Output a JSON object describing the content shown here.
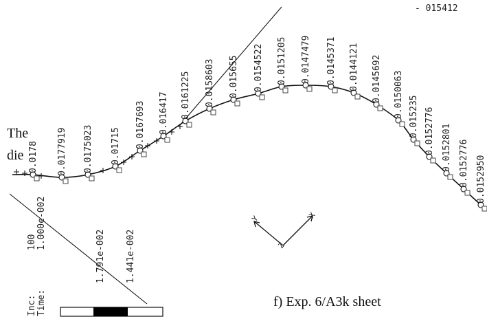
{
  "side_text": [
    "The",
    "die"
  ],
  "caption": "f) Exp. 6/A3k sheet",
  "corner_label": "- 015412",
  "inc_label": "Inc:",
  "time_label": "Time:",
  "inc_value": "100",
  "time_value": "1.000e-002",
  "scale_max": "1.791e-002",
  "scale_min": "1.441e-002",
  "axes": {
    "x": "X",
    "y": "Y",
    "z": "Z"
  },
  "node_values": [
    "0.0178",
    "0.0177919",
    "0.0175023",
    "0.01715",
    "0.0167693",
    "0.016417",
    "0.0161225",
    "0.0158603",
    "0.015655",
    "0.0154522",
    "0.0151205",
    "0.0147479",
    "0.0145371",
    "0.0144121",
    "0.0145692",
    "0.0150063",
    "0.015235",
    "0.0152776",
    "0.0152801",
    "0.0152776",
    "0.0152950"
  ],
  "colors": {
    "line": "#111111",
    "bar_dark": "#000000",
    "bar_light": "#ffffff"
  }
}
